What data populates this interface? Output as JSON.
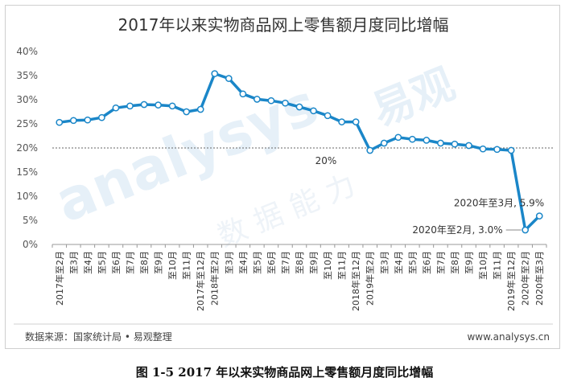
{
  "chart_data": {
    "type": "line",
    "title": "2017年以来实物商品网上零售额月度同比增幅",
    "categories": [
      "2017年至2月",
      "至3月",
      "至4月",
      "至5月",
      "至6月",
      "至7月",
      "至8月",
      "至9月",
      "至10月",
      "至11月",
      "2017年至12月",
      "2018年至2月",
      "至3月",
      "至4月",
      "至5月",
      "至6月",
      "至7月",
      "至8月",
      "至9月",
      "至10月",
      "至11月",
      "2018年至12月",
      "2019年至2月",
      "至3月",
      "至4月",
      "至5月",
      "至6月",
      "至7月",
      "至8月",
      "至9月",
      "至10月",
      "至11月",
      "2019年至12月",
      "2020年至2月",
      "2020年至3月"
    ],
    "series": [
      {
        "values": [
          25.3,
          25.7,
          25.8,
          26.3,
          28.3,
          28.7,
          29.0,
          28.9,
          28.7,
          27.5,
          28.0,
          35.4,
          34.4,
          31.2,
          30.1,
          29.8,
          29.3,
          28.5,
          27.7,
          26.7,
          25.4,
          25.4,
          19.5,
          21.0,
          22.2,
          21.8,
          21.6,
          21.0,
          20.8,
          20.5,
          19.8,
          19.7,
          19.5,
          3.0,
          5.9
        ],
        "color": "#1a86c8"
      }
    ],
    "yticks": [
      "0%",
      "5%",
      "10%",
      "15%",
      "20%",
      "25%",
      "30%",
      "35%",
      "40%"
    ],
    "ylim": [
      0,
      40
    ],
    "reference_line": {
      "value": 20,
      "label": "20%"
    },
    "annotations": [
      {
        "category": "2020年至2月",
        "label": "2020年至2月, 3.0%"
      },
      {
        "category": "2020年至3月",
        "label": "2020年至3月, 5.9%"
      }
    ],
    "xlabel": "",
    "ylabel": "",
    "grid": false
  },
  "footer": {
    "source": "数据来源：国家统计局 • 易观整理",
    "website": "www.analysys.cn"
  },
  "watermark": {
    "latin": "analysys",
    "cn_big": "易观",
    "cn_small": "数据能力"
  },
  "caption": "图 1-5  2017 年以来实物商品网上零售额月度同比增幅"
}
